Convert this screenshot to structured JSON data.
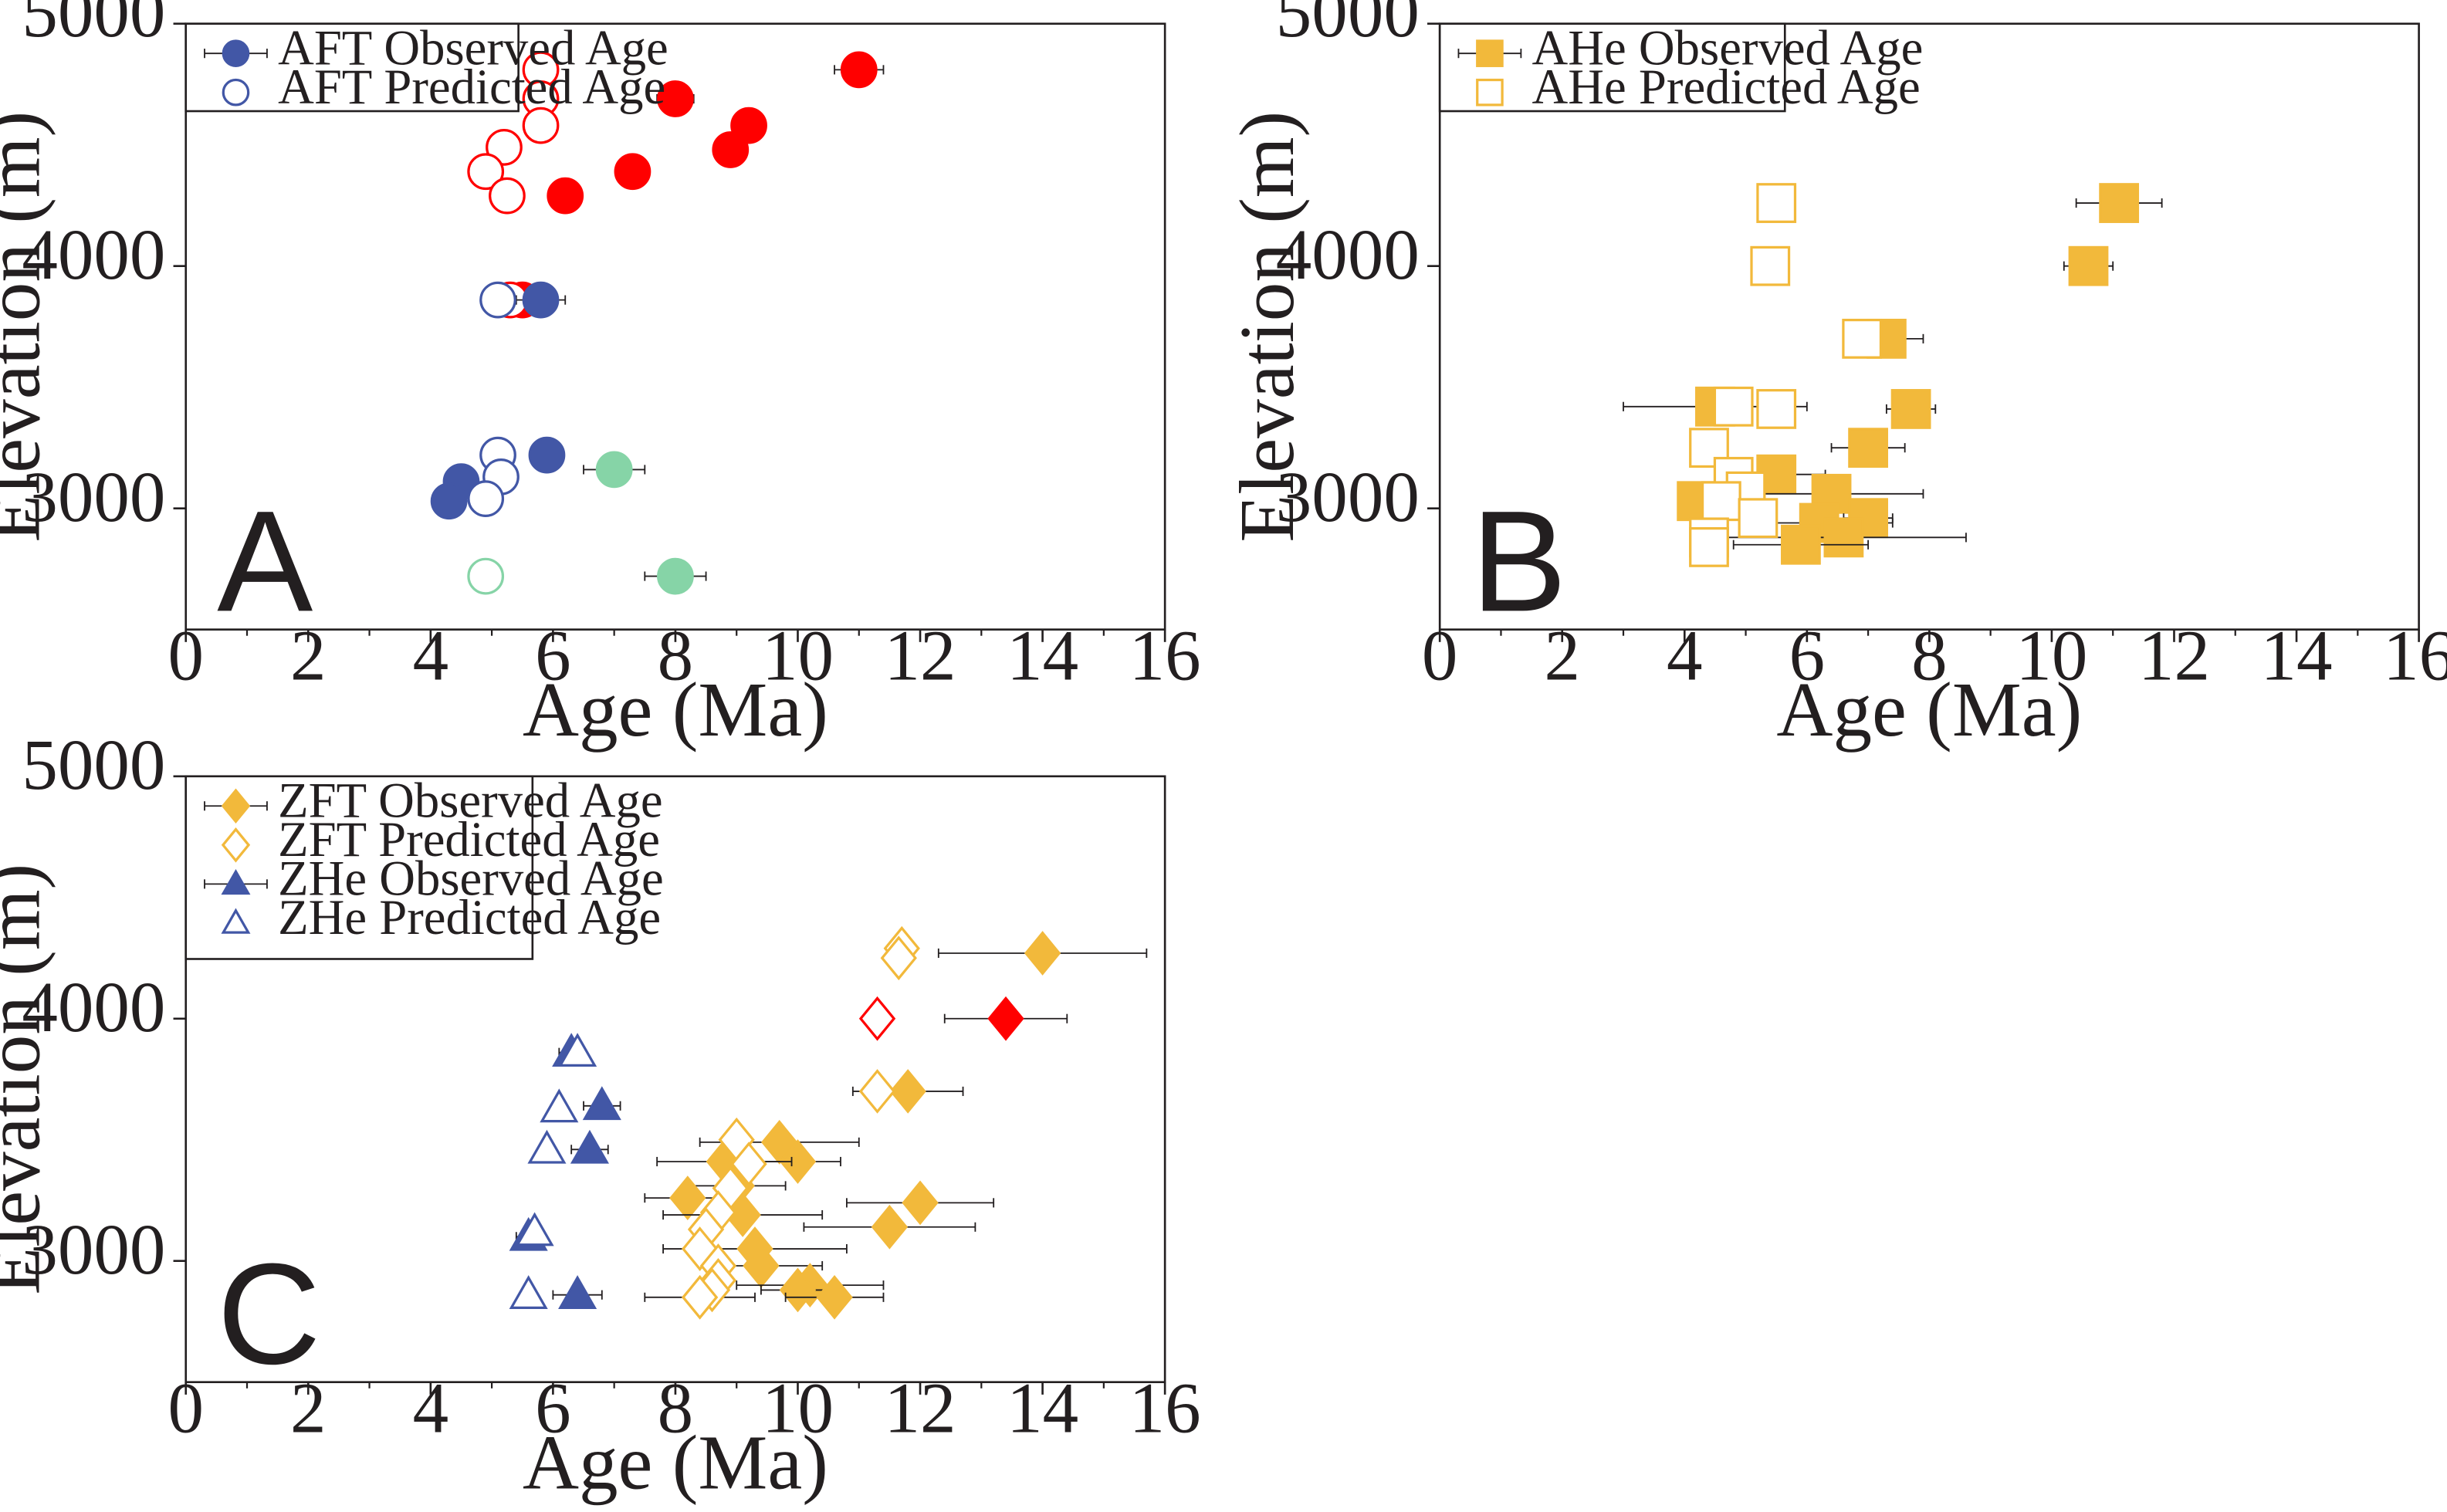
{
  "chart_data": [
    {
      "id": "A",
      "type": "scatter",
      "panel_letter": "A",
      "xlabel": "Age (Ma)",
      "ylabel": "Elevation (m)",
      "xlim": [
        0,
        16
      ],
      "ylim": [
        2500,
        5000
      ],
      "xticks": [
        "0",
        "2",
        "4",
        "6",
        "8",
        "10",
        "12",
        "14",
        "16"
      ],
      "yticks": [
        "3000",
        "4000",
        "5000"
      ],
      "legend_position": "top-left",
      "legend": [
        {
          "label": "AFT Observed Age",
          "marker": "circle",
          "filled": true,
          "color": "#4257a6"
        },
        {
          "label": "AFT Predicted Age",
          "marker": "circle",
          "filled": false,
          "color": "#4257a6"
        }
      ],
      "series": [
        {
          "name": "AFT Observed Age (red group)",
          "marker": "circle",
          "filled": true,
          "color": "#ff0000",
          "points": [
            {
              "x": 11.0,
              "y": 4810,
              "err": 0.4
            },
            {
              "x": 8.0,
              "y": 4690,
              "err": 0.3
            },
            {
              "x": 9.2,
              "y": 4580
            },
            {
              "x": 8.9,
              "y": 4480
            },
            {
              "x": 7.3,
              "y": 4390
            },
            {
              "x": 6.2,
              "y": 4290
            },
            {
              "x": 5.5,
              "y": 3860,
              "err": 0.3
            }
          ]
        },
        {
          "name": "AFT Predicted Age (red group)",
          "marker": "circle",
          "filled": false,
          "color": "#ff0000",
          "points": [
            {
              "x": 5.8,
              "y": 4810
            },
            {
              "x": 5.8,
              "y": 4690
            },
            {
              "x": 5.8,
              "y": 4580
            },
            {
              "x": 5.2,
              "y": 4490
            },
            {
              "x": 4.9,
              "y": 4390
            },
            {
              "x": 5.25,
              "y": 4290
            },
            {
              "x": 5.3,
              "y": 3860
            }
          ]
        },
        {
          "name": "AFT Observed Age (blue group)",
          "marker": "circle",
          "filled": true,
          "color": "#4257a6",
          "points": [
            {
              "x": 5.8,
              "y": 3860,
              "err": 0.4
            },
            {
              "x": 5.9,
              "y": 3220
            },
            {
              "x": 4.5,
              "y": 3110
            },
            {
              "x": 4.3,
              "y": 3030
            }
          ]
        },
        {
          "name": "AFT Predicted Age (blue group)",
          "marker": "circle",
          "filled": false,
          "color": "#4257a6",
          "points": [
            {
              "x": 5.1,
              "y": 3860
            },
            {
              "x": 5.1,
              "y": 3220
            },
            {
              "x": 5.15,
              "y": 3130
            },
            {
              "x": 4.9,
              "y": 3040
            }
          ]
        },
        {
          "name": "AFT Observed Age (green group)",
          "marker": "circle",
          "filled": true,
          "color": "#86d4a7",
          "points": [
            {
              "x": 7.0,
              "y": 3160,
              "err": 0.5
            },
            {
              "x": 8.0,
              "y": 2720,
              "err": 0.5
            }
          ]
        },
        {
          "name": "AFT Predicted Age (green group)",
          "marker": "circle",
          "filled": false,
          "color": "#86d4a7",
          "points": [
            {
              "x": 4.9,
              "y": 2720
            }
          ]
        }
      ]
    },
    {
      "id": "B",
      "type": "scatter",
      "panel_letter": "B",
      "xlabel": "Age (Ma)",
      "ylabel": "Elevation (m)",
      "xlim": [
        0,
        16
      ],
      "ylim": [
        2500,
        5000
      ],
      "xticks": [
        "0",
        "2",
        "4",
        "6",
        "8",
        "10",
        "12",
        "14",
        "16"
      ],
      "yticks": [
        "3000",
        "4000",
        "5000"
      ],
      "legend_position": "top-left",
      "legend": [
        {
          "label": "AHe Observed Age",
          "marker": "square",
          "filled": true,
          "color": "#f2b93b"
        },
        {
          "label": "AHe Predicted Age",
          "marker": "square",
          "filled": false,
          "color": "#f2b93b"
        }
      ],
      "series": [
        {
          "name": "AHe Observed Age",
          "marker": "square",
          "filled": true,
          "color": "#f2b93b",
          "points": [
            {
              "x": 11.1,
              "y": 4260,
              "err": 0.7
            },
            {
              "x": 10.6,
              "y": 4000,
              "err": 0.4
            },
            {
              "x": 7.3,
              "y": 3700,
              "err": 0.6
            },
            {
              "x": 7.7,
              "y": 3410,
              "err": 0.4
            },
            {
              "x": 4.5,
              "y": 3420,
              "err": 1.5
            },
            {
              "x": 7.0,
              "y": 3250,
              "err": 0.6
            },
            {
              "x": 5.5,
              "y": 3140,
              "err": 0.8
            },
            {
              "x": 4.2,
              "y": 3030,
              "err": 0.2
            },
            {
              "x": 6.4,
              "y": 3060,
              "err": 1.5
            },
            {
              "x": 6.2,
              "y": 2940,
              "err": 1.2
            },
            {
              "x": 7.0,
              "y": 2960,
              "err": 0.4
            },
            {
              "x": 6.6,
              "y": 2880,
              "err": 2.0
            },
            {
              "x": 5.9,
              "y": 2850,
              "err": 1.1
            }
          ]
        },
        {
          "name": "AHe Predicted Age",
          "marker": "square",
          "filled": false,
          "color": "#f2b93b",
          "points": [
            {
              "x": 5.5,
              "y": 4260
            },
            {
              "x": 5.4,
              "y": 4000
            },
            {
              "x": 6.9,
              "y": 3700
            },
            {
              "x": 5.5,
              "y": 3410
            },
            {
              "x": 4.8,
              "y": 3420
            },
            {
              "x": 4.4,
              "y": 3250
            },
            {
              "x": 4.8,
              "y": 3130
            },
            {
              "x": 5.0,
              "y": 3070
            },
            {
              "x": 4.6,
              "y": 3030
            },
            {
              "x": 5.2,
              "y": 2960
            },
            {
              "x": 4.4,
              "y": 2880
            },
            {
              "x": 4.4,
              "y": 2840
            }
          ]
        }
      ]
    },
    {
      "id": "C",
      "type": "scatter",
      "panel_letter": "C",
      "xlabel": "Age (Ma)",
      "ylabel": "Elevation (m)",
      "xlim": [
        0,
        16
      ],
      "ylim": [
        2500,
        5000
      ],
      "xticks": [
        "0",
        "2",
        "4",
        "6",
        "8",
        "10",
        "12",
        "14",
        "16"
      ],
      "yticks": [
        "3000",
        "4000",
        "5000"
      ],
      "legend_position": "top-left",
      "legend": [
        {
          "label": "ZFT Observed Age",
          "marker": "diamond",
          "filled": true,
          "color": "#f2b93b"
        },
        {
          "label": "ZFT Predicted Age",
          "marker": "diamond",
          "filled": false,
          "color": "#f2b93b"
        },
        {
          "label": "ZHe Observed Age",
          "marker": "triangle",
          "filled": true,
          "color": "#4257a6"
        },
        {
          "label": "ZHe Predicted Age",
          "marker": "triangle",
          "filled": false,
          "color": "#4257a6"
        }
      ],
      "series": [
        {
          "name": "ZFT Observed Age",
          "marker": "diamond",
          "filled": true,
          "color": "#f2b93b",
          "points": [
            {
              "x": 14.0,
              "y": 4270,
              "err": 1.7
            },
            {
              "x": 11.8,
              "y": 3700,
              "err": 0.9
            },
            {
              "x": 9.7,
              "y": 3490,
              "err": 1.3
            },
            {
              "x": 10.0,
              "y": 3410,
              "err": 0.7
            },
            {
              "x": 8.8,
              "y": 3410,
              "err": 1.1
            },
            {
              "x": 9.0,
              "y": 3310,
              "err": 0.8
            },
            {
              "x": 8.2,
              "y": 3260,
              "err": 0.7
            },
            {
              "x": 12.0,
              "y": 3240,
              "err": 1.2
            },
            {
              "x": 9.1,
              "y": 3190,
              "err": 1.3
            },
            {
              "x": 11.5,
              "y": 3140,
              "err": 1.4
            },
            {
              "x": 9.3,
              "y": 3050,
              "err": 1.5
            },
            {
              "x": 9.4,
              "y": 2980,
              "err": 1.0
            },
            {
              "x": 10.2,
              "y": 2900,
              "err": 1.2
            },
            {
              "x": 10.0,
              "y": 2880,
              "err": 0.6
            },
            {
              "x": 10.6,
              "y": 2850,
              "err": 0.8
            },
            {
              "x": 8.4,
              "y": 2850,
              "err": 0.9
            }
          ]
        },
        {
          "name": "ZFT Predicted Age",
          "marker": "diamond",
          "filled": false,
          "color": "#f2b93b",
          "points": [
            {
              "x": 11.7,
              "y": 4290
            },
            {
              "x": 11.65,
              "y": 4250
            },
            {
              "x": 11.3,
              "y": 3700
            },
            {
              "x": 9.0,
              "y": 3500
            },
            {
              "x": 9.2,
              "y": 3400
            },
            {
              "x": 8.9,
              "y": 3300
            },
            {
              "x": 8.7,
              "y": 3200
            },
            {
              "x": 8.5,
              "y": 3130
            },
            {
              "x": 8.4,
              "y": 3050
            },
            {
              "x": 8.7,
              "y": 2980
            },
            {
              "x": 8.7,
              "y": 2920
            },
            {
              "x": 8.6,
              "y": 2880
            },
            {
              "x": 8.4,
              "y": 2850
            }
          ]
        },
        {
          "name": "ZFT Observed Age (red)",
          "marker": "diamond",
          "filled": true,
          "color": "#ff0000",
          "points": [
            {
              "x": 13.4,
              "y": 4000,
              "err": 1.0
            }
          ]
        },
        {
          "name": "ZFT Predicted Age (red)",
          "marker": "diamond",
          "filled": false,
          "color": "#ff0000",
          "points": [
            {
              "x": 11.3,
              "y": 4000
            }
          ]
        },
        {
          "name": "ZHe Observed Age",
          "marker": "triangle",
          "filled": true,
          "color": "#4257a6",
          "points": [
            {
              "x": 6.3,
              "y": 3860,
              "err": 0.2
            },
            {
              "x": 6.8,
              "y": 3640,
              "err": 0.3
            },
            {
              "x": 6.6,
              "y": 3460,
              "err": 0.3
            },
            {
              "x": 5.6,
              "y": 3100,
              "err": 0.2
            },
            {
              "x": 6.4,
              "y": 2860,
              "err": 0.4
            }
          ]
        },
        {
          "name": "ZHe Predicted Age",
          "marker": "triangle",
          "filled": false,
          "color": "#4257a6",
          "points": [
            {
              "x": 6.4,
              "y": 3860
            },
            {
              "x": 6.1,
              "y": 3630
            },
            {
              "x": 5.9,
              "y": 3460
            },
            {
              "x": 5.7,
              "y": 3120
            },
            {
              "x": 5.6,
              "y": 2860
            }
          ]
        }
      ]
    }
  ]
}
